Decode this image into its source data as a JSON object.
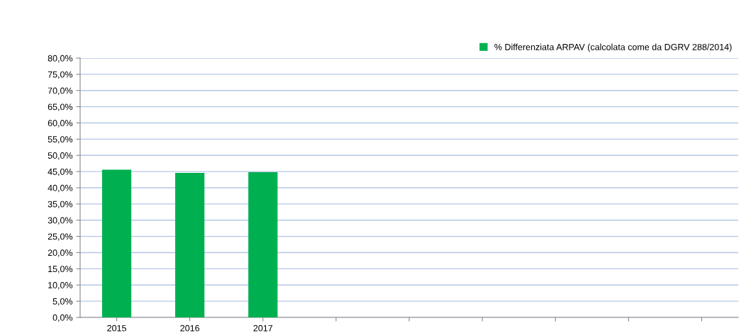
{
  "chart_data": {
    "type": "bar",
    "categories": [
      "2015",
      "2016",
      "2017",
      null,
      null,
      null,
      null,
      null,
      null
    ],
    "series": [
      {
        "name": "% Differenziata ARPAV (calcolata come da DGRV 288/2014)",
        "color": "#00b050",
        "values": [
          45.6,
          44.6,
          44.8,
          null,
          null,
          null,
          null,
          null,
          null
        ]
      }
    ],
    "ylim": [
      0,
      80
    ],
    "yticks": [
      {
        "value": 0,
        "label": "0,0%"
      },
      {
        "value": 5,
        "label": "5,0%"
      },
      {
        "value": 10,
        "label": "10,0%"
      },
      {
        "value": 15,
        "label": "15,0%"
      },
      {
        "value": 20,
        "label": "20,0%"
      },
      {
        "value": 25,
        "label": "25,0%"
      },
      {
        "value": 30,
        "label": "30,0%"
      },
      {
        "value": 35,
        "label": "35,0%"
      },
      {
        "value": 40,
        "label": "40,0%"
      },
      {
        "value": 45,
        "label": "45,0%"
      },
      {
        "value": 50,
        "label": "50,0%"
      },
      {
        "value": 55,
        "label": "55,0%"
      },
      {
        "value": 60,
        "label": "60,0%"
      },
      {
        "value": 65,
        "label": "65,0%"
      },
      {
        "value": 70,
        "label": "70,0%"
      },
      {
        "value": 75,
        "label": "75,0%"
      },
      {
        "value": 80,
        "label": "80,0%"
      }
    ],
    "grid": "y",
    "legend": "top right"
  }
}
